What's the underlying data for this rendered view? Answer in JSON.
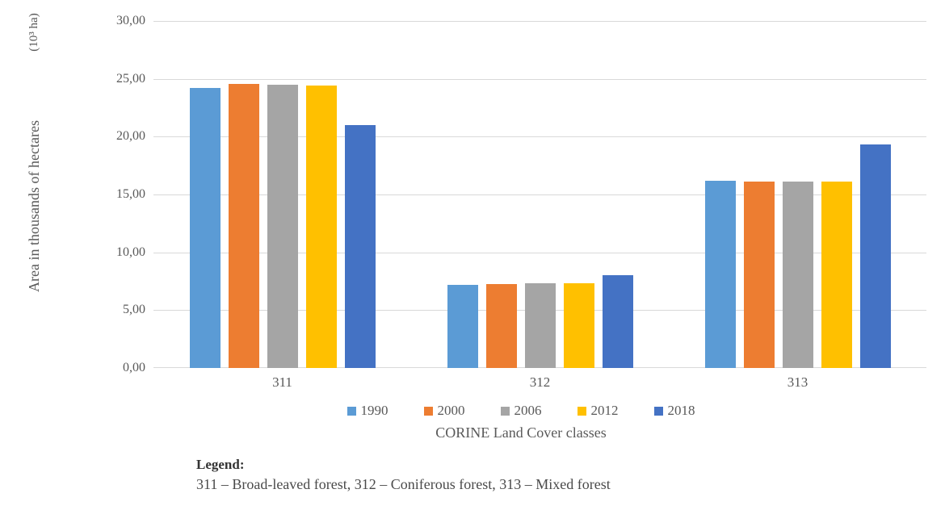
{
  "chart_data": {
    "type": "bar",
    "title": "",
    "xlabel": "CORINE Land Cover classes",
    "ylabel": "Area in thousands of hectares",
    "ylabel_unit": "(10³ ha)",
    "categories": [
      "311",
      "312",
      "313"
    ],
    "series": [
      {
        "name": "1990",
        "color": "#5B9BD5",
        "values": [
          24.2,
          7.2,
          16.2
        ]
      },
      {
        "name": "2000",
        "color": "#ED7D31",
        "values": [
          24.55,
          7.25,
          16.15
        ]
      },
      {
        "name": "2006",
        "color": "#A5A5A5",
        "values": [
          24.5,
          7.3,
          16.1
        ]
      },
      {
        "name": "2012",
        "color": "#FFC000",
        "values": [
          24.4,
          7.3,
          16.15
        ]
      },
      {
        "name": "2018",
        "color": "#4472C4",
        "values": [
          21.0,
          8.0,
          19.3
        ]
      }
    ],
    "ylim": [
      0,
      30
    ],
    "y_tick_step": 5,
    "y_tick_labels": [
      "0,00",
      "5,00",
      "10,00",
      "15,00",
      "20,00",
      "25,00",
      "30,00"
    ],
    "grid": true,
    "legend_position": "bottom",
    "gridline_color": "#D9D9D9",
    "axis_line_color": "#D9D9D9",
    "tick_label_color": "#595959"
  },
  "footnote": {
    "heading": "Legend:",
    "text": "311 – Broad-leaved forest, 312 – Coniferous forest, 313 – Mixed forest"
  }
}
